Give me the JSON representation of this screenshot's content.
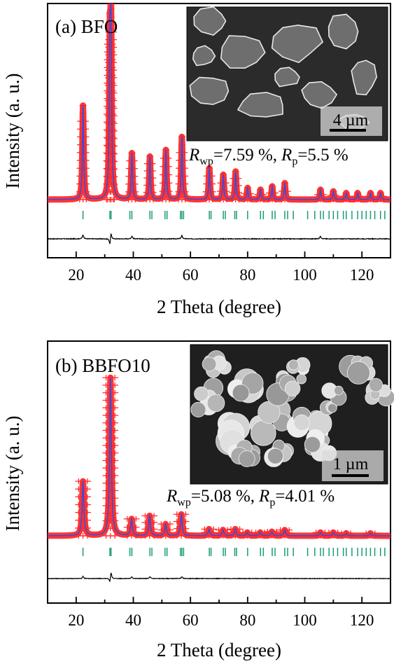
{
  "chart_data": [
    {
      "type": "scatter",
      "panel_label": "(a) BFO",
      "xlabel": "2 Theta (degree)",
      "ylabel": "Intensity (a. u.)",
      "xlim": [
        10,
        130
      ],
      "xticks": [
        "20",
        "40",
        "60",
        "80",
        "100",
        "120"
      ],
      "y_ticks_shown": false,
      "legend": "none",
      "inset": {
        "kind": "SEM micrograph",
        "scale_bar": "4 µm",
        "texture": "smooth"
      },
      "fit_stats": {
        "R_wp_symbol": "R",
        "R_wp_sub": "wp",
        "R_wp_value": "=7.59 %,",
        "R_p_symbol": "R",
        "R_p_sub": "p",
        "R_p_value": "=5.5 %"
      },
      "series": [
        {
          "role": "observed",
          "marker": "+",
          "color": "#ff2a2a"
        },
        {
          "role": "calculated",
          "marker": "line",
          "color": "#3a4dd6"
        },
        {
          "role": "bragg_positions",
          "marker": "|",
          "color": "#1a9a78"
        },
        {
          "role": "difference",
          "marker": "line",
          "color": "#000000"
        }
      ],
      "peaks": [
        {
          "x": 22.4,
          "y": 0.57
        },
        {
          "x": 31.8,
          "y": 0.85
        },
        {
          "x": 32.2,
          "y": 0.95
        },
        {
          "x": 39.5,
          "y": 0.28
        },
        {
          "x": 45.8,
          "y": 0.26
        },
        {
          "x": 51.4,
          "y": 0.3
        },
        {
          "x": 57.0,
          "y": 0.38
        },
        {
          "x": 66.6,
          "y": 0.19
        },
        {
          "x": 71.5,
          "y": 0.15
        },
        {
          "x": 75.8,
          "y": 0.17
        },
        {
          "x": 80.0,
          "y": 0.07
        },
        {
          "x": 84.5,
          "y": 0.06
        },
        {
          "x": 88.6,
          "y": 0.08
        },
        {
          "x": 93.0,
          "y": 0.1
        },
        {
          "x": 105.5,
          "y": 0.06
        },
        {
          "x": 110.0,
          "y": 0.05
        },
        {
          "x": 114.5,
          "y": 0.04
        },
        {
          "x": 118.5,
          "y": 0.04
        },
        {
          "x": 123.0,
          "y": 0.04
        },
        {
          "x": 126.5,
          "y": 0.04
        }
      ],
      "bragg_positions": [
        22.4,
        31.8,
        32.2,
        38.8,
        39.5,
        45.8,
        46.5,
        51.1,
        51.8,
        56.5,
        57.0,
        57.6,
        66.6,
        67.2,
        71.5,
        72.2,
        75.5,
        76.1,
        80.0,
        84.5,
        85.5,
        88.6,
        89.6,
        93.0,
        94.0,
        96.0,
        101.0,
        103.5,
        105.5,
        106.5,
        108.5,
        110.0,
        111.5,
        113.5,
        114.5,
        116.5,
        118.5,
        120.0,
        121.5,
        123.0,
        124.5,
        126.5,
        128.0
      ],
      "difference_spikes": [
        {
          "x": 22.4,
          "y": 0.06
        },
        {
          "x": 31.8,
          "y": -0.1
        },
        {
          "x": 32.2,
          "y": 0.1
        },
        {
          "x": 39.5,
          "y": 0.04
        },
        {
          "x": 57.0,
          "y": 0.05
        },
        {
          "x": 105.5,
          "y": 0.04
        }
      ]
    },
    {
      "type": "scatter",
      "panel_label": "(b) BBFO10",
      "xlabel": "2 Theta (degree)",
      "ylabel": "Intensity (a. u.)",
      "xlim": [
        10,
        130
      ],
      "xticks": [
        "20",
        "40",
        "60",
        "80",
        "100",
        "120"
      ],
      "y_ticks_shown": false,
      "legend": "none",
      "inset": {
        "kind": "SEM micrograph",
        "scale_bar": "1 µm",
        "texture": "granular"
      },
      "fit_stats": {
        "R_wp_symbol": "R",
        "R_wp_sub": "wp",
        "R_wp_value": "=5.08 %,",
        "R_p_symbol": "R",
        "R_p_sub": "p",
        "R_p_value": "=4.01 %"
      },
      "series": [
        {
          "role": "observed",
          "marker": "+",
          "color": "#ff2a2a"
        },
        {
          "role": "calculated",
          "marker": "line",
          "color": "#3a4dd6"
        },
        {
          "role": "bragg_positions",
          "marker": "|",
          "color": "#1a9a78"
        },
        {
          "role": "difference",
          "marker": "line",
          "color": "#000000"
        }
      ],
      "peaks": [
        {
          "x": 22.4,
          "y": 0.33
        },
        {
          "x": 32.0,
          "y": 0.96
        },
        {
          "x": 39.4,
          "y": 0.1
        },
        {
          "x": 45.7,
          "y": 0.12
        },
        {
          "x": 51.3,
          "y": 0.07
        },
        {
          "x": 56.8,
          "y": 0.13
        },
        {
          "x": 66.5,
          "y": 0.04
        },
        {
          "x": 71.4,
          "y": 0.035
        },
        {
          "x": 75.7,
          "y": 0.04
        },
        {
          "x": 79.9,
          "y": 0.02
        },
        {
          "x": 84.4,
          "y": 0.02
        },
        {
          "x": 88.5,
          "y": 0.025
        },
        {
          "x": 93.0,
          "y": 0.035
        },
        {
          "x": 105.5,
          "y": 0.02
        },
        {
          "x": 110.0,
          "y": 0.02
        },
        {
          "x": 114.5,
          "y": 0.015
        },
        {
          "x": 123.0,
          "y": 0.015
        }
      ],
      "bragg_positions": [
        22.4,
        31.8,
        32.2,
        38.8,
        39.5,
        45.8,
        46.5,
        51.1,
        51.8,
        56.5,
        57.0,
        57.6,
        66.6,
        67.2,
        71.5,
        72.2,
        75.5,
        76.1,
        80.0,
        84.5,
        85.5,
        88.6,
        89.6,
        93.0,
        94.0,
        96.0,
        101.0,
        103.5,
        105.5,
        106.5,
        108.5,
        110.0,
        111.5,
        113.5,
        114.5,
        116.5,
        118.5,
        120.0,
        121.5,
        123.0,
        124.5,
        126.5,
        128.0
      ],
      "difference_spikes": [
        {
          "x": 22.4,
          "y": 0.04
        },
        {
          "x": 31.8,
          "y": -0.08
        },
        {
          "x": 32.2,
          "y": 0.12
        },
        {
          "x": 39.5,
          "y": 0.03
        },
        {
          "x": 45.8,
          "y": 0.03
        },
        {
          "x": 57.0,
          "y": 0.03
        }
      ]
    }
  ]
}
